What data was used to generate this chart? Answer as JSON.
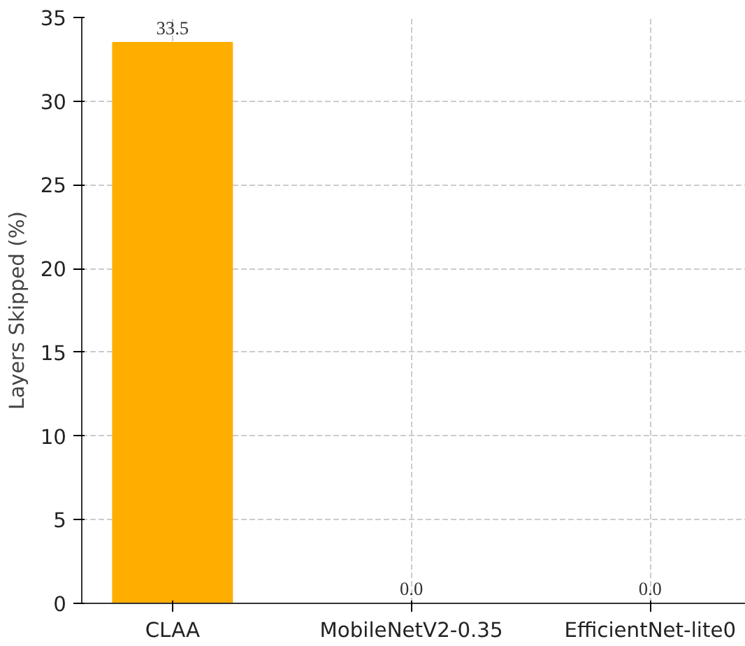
{
  "chart_data": {
    "type": "bar",
    "ylabel": "Layers Skipped (%)",
    "categories": [
      "CLAA",
      "MobileNetV2-0.35",
      "EfficientNet-lite0"
    ],
    "values": [
      33.5,
      0.0,
      0.0
    ],
    "color": "#ffae00",
    "value_labels": [
      "33.5",
      "0.0",
      "0.0"
    ],
    "ylim": [
      0,
      35
    ],
    "yticks": [
      0,
      5,
      10,
      15,
      20,
      25,
      30,
      35
    ],
    "grid": true
  }
}
